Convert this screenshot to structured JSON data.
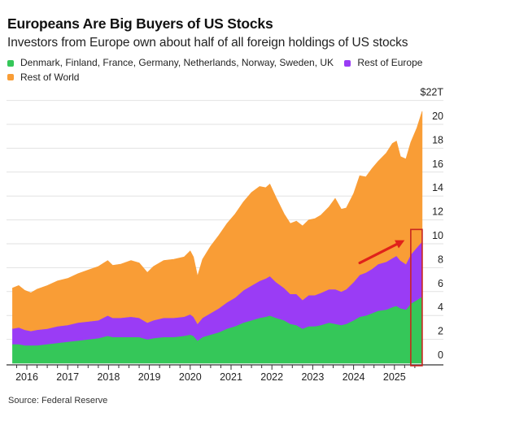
{
  "header": {
    "title": "Europeans Are Big Buyers of US Stocks",
    "subtitle": "Investors from Europe own about half of all foreign holdings of US stocks"
  },
  "legend": [
    {
      "label": "Denmark, Finland, France, Germany, Netherlands, Norway, Sweden, UK",
      "color": "#35c759"
    },
    {
      "label": "Rest of Europe",
      "color": "#9a3cf5"
    },
    {
      "label": "Rest of World",
      "color": "#f99d36"
    }
  ],
  "source": "Source: Federal Reserve",
  "annotations": {
    "arrow_color": "#e0221a",
    "highlight_box_color": "#c8261f",
    "arrow": {
      "from": {
        "t": 2024.15,
        "value": 8.4
      },
      "to": {
        "t": 2025.25,
        "value": 10.3
      }
    },
    "highlight_box": {
      "t_start": 2025.4,
      "t_end": 2025.68,
      "value_min": 0,
      "value_max": 11.2
    }
  },
  "chart_data": {
    "type": "area",
    "stacked": true,
    "title": "Europeans Are Big Buyers of US Stocks",
    "subtitle": "Investors from Europe own about half of all foreign holdings of US stocks",
    "xlabel": "",
    "ylabel": "",
    "unit": "$T",
    "ylim": [
      0,
      22
    ],
    "yticks": [
      0,
      2,
      4,
      6,
      8,
      10,
      12,
      14,
      16,
      18,
      20,
      22
    ],
    "ytick_labels": [
      "0",
      "2",
      "4",
      "6",
      "8",
      "10",
      "12",
      "14",
      "16",
      "18",
      "20",
      "$22T"
    ],
    "xlim": [
      2015.65,
      2025.68
    ],
    "xticks": [
      2016,
      2017,
      2018,
      2019,
      2020,
      2021,
      2022,
      2023,
      2024,
      2025
    ],
    "xtick_labels": [
      "2016",
      "2017",
      "2018",
      "2019",
      "2020",
      "2021",
      "2022",
      "2023",
      "2024",
      "2025"
    ],
    "grid": true,
    "legend_position": "top-left",
    "series_order_bottom_to_top": [
      "Denmark, Finland, France, Germany, Netherlands, Norway, Sweden, UK",
      "Rest of Europe",
      "Rest of World"
    ],
    "x": [
      2015.65,
      2015.8,
      2015.95,
      2016.1,
      2016.25,
      2016.5,
      2016.75,
      2017.0,
      2017.25,
      2017.5,
      2017.75,
      2017.98,
      2018.1,
      2018.3,
      2018.55,
      2018.75,
      2018.95,
      2019.1,
      2019.35,
      2019.6,
      2019.85,
      2020.0,
      2020.08,
      2020.18,
      2020.3,
      2020.5,
      2020.7,
      2020.9,
      2021.1,
      2021.3,
      2021.5,
      2021.7,
      2021.85,
      2021.95,
      2022.1,
      2022.3,
      2022.45,
      2022.6,
      2022.75,
      2022.9,
      2023.05,
      2023.2,
      2023.4,
      2023.55,
      2023.7,
      2023.82,
      2024.0,
      2024.15,
      2024.3,
      2024.45,
      2024.6,
      2024.8,
      2024.95,
      2025.05,
      2025.15,
      2025.28,
      2025.4,
      2025.55,
      2025.68
    ],
    "series": [
      {
        "name": "Denmark, Finland, France, Germany, Netherlands, Norway, Sweden, UK",
        "values": [
          1.6,
          1.6,
          1.5,
          1.5,
          1.5,
          1.6,
          1.7,
          1.8,
          1.9,
          2.0,
          2.1,
          2.3,
          2.2,
          2.2,
          2.2,
          2.2,
          2.0,
          2.1,
          2.2,
          2.2,
          2.3,
          2.4,
          2.3,
          1.9,
          2.2,
          2.4,
          2.6,
          2.9,
          3.1,
          3.4,
          3.6,
          3.8,
          3.9,
          4.0,
          3.8,
          3.6,
          3.3,
          3.2,
          2.9,
          3.1,
          3.1,
          3.2,
          3.4,
          3.3,
          3.2,
          3.3,
          3.6,
          3.9,
          4.0,
          4.2,
          4.4,
          4.5,
          4.7,
          4.8,
          4.6,
          4.5,
          5.0,
          5.3,
          5.6
        ]
      },
      {
        "name": "Rest of Europe",
        "values": [
          1.3,
          1.4,
          1.3,
          1.2,
          1.3,
          1.3,
          1.4,
          1.4,
          1.5,
          1.5,
          1.5,
          1.7,
          1.6,
          1.6,
          1.7,
          1.6,
          1.4,
          1.5,
          1.6,
          1.6,
          1.6,
          1.7,
          1.6,
          1.4,
          1.6,
          1.8,
          2.0,
          2.2,
          2.4,
          2.7,
          2.9,
          3.1,
          3.2,
          3.3,
          3.0,
          2.7,
          2.5,
          2.6,
          2.4,
          2.6,
          2.6,
          2.7,
          2.8,
          2.9,
          2.8,
          2.9,
          3.2,
          3.5,
          3.6,
          3.7,
          3.9,
          4.0,
          4.1,
          4.2,
          4.0,
          3.8,
          4.1,
          4.4,
          4.6
        ]
      },
      {
        "name": "Rest of World",
        "values": [
          3.4,
          3.5,
          3.3,
          3.2,
          3.4,
          3.6,
          3.8,
          3.9,
          4.1,
          4.3,
          4.5,
          4.6,
          4.4,
          4.5,
          4.7,
          4.6,
          4.2,
          4.5,
          4.8,
          4.9,
          5.0,
          5.3,
          5.0,
          4.0,
          4.9,
          5.6,
          6.1,
          6.6,
          7.0,
          7.4,
          7.8,
          7.9,
          7.6,
          7.7,
          7.1,
          6.2,
          5.9,
          6.1,
          6.2,
          6.3,
          6.4,
          6.5,
          6.9,
          7.6,
          6.9,
          6.8,
          7.4,
          8.3,
          8.0,
          8.4,
          8.6,
          9.1,
          9.6,
          9.6,
          8.7,
          8.8,
          9.4,
          10.0,
          10.9
        ]
      }
    ]
  }
}
